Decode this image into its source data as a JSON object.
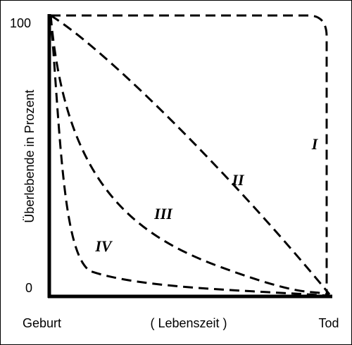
{
  "axes": {
    "y_label": "Überlebende in Prozent",
    "y_top": "100",
    "y_bottom": "0",
    "x_start": "Geburt",
    "x_middle": "( Lebenszeit )",
    "x_end": "Tod"
  },
  "curves": [
    {
      "label": "I"
    },
    {
      "label": "II"
    },
    {
      "label": "III"
    },
    {
      "label": "IV"
    }
  ]
}
